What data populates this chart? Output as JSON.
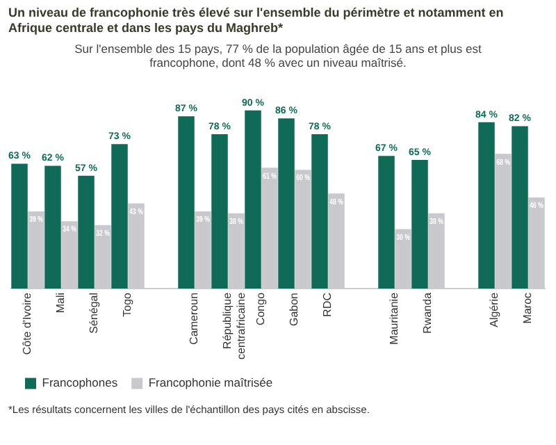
{
  "chart_data": {
    "type": "bar",
    "title": "Un niveau de francophonie très élevé sur l'ensemble du périmètre et notamment en Afrique centrale et dans les pays du Maghreb*",
    "subtitle": "Sur l'ensemble des 15 pays, 77 % de la population âgée de 15 ans et plus est francophone, dont 48 % avec un niveau maîtrisé.",
    "categories": [
      "Côte d'Ivoire",
      "Mali",
      "Sénégal",
      "Togo",
      null,
      "Cameroun",
      "République centrafricaine",
      "Congo",
      "Gabon",
      "RDC",
      null,
      "Mauritanie",
      "Rwanda",
      null,
      "Algérie",
      "Maroc"
    ],
    "series": [
      {
        "name": "Francophones",
        "color": "#0f6b57",
        "values": [
          63,
          62,
          57,
          73,
          null,
          87,
          78,
          90,
          86,
          78,
          null,
          67,
          65,
          null,
          84,
          82
        ],
        "value_labels": [
          "63 %",
          "62 %",
          "57 %",
          "73 %",
          null,
          "87 %",
          "78 %",
          "90 %",
          "86 %",
          "78 %",
          null,
          "67 %",
          "65 %",
          null,
          "84 %",
          "82 %"
        ]
      },
      {
        "name": "Francophonie maîtrisée",
        "color": "#c9c8cc",
        "values": [
          39,
          34,
          32,
          43,
          null,
          39,
          38,
          61,
          60,
          48,
          null,
          30,
          38,
          null,
          68,
          46
        ],
        "value_labels": [
          "39 %",
          "34 %",
          "32 %",
          "43 %",
          null,
          "39 %",
          "38 %",
          "61 %",
          "60 %",
          "48 %",
          null,
          "30 %",
          "38 %",
          null,
          "68 %",
          "46 %"
        ]
      }
    ],
    "grid": false,
    "legend": "bottom left",
    "annotations": [
      "*Les résultats concernent les villes de l'échantillon des pays cités en abscisse."
    ]
  }
}
